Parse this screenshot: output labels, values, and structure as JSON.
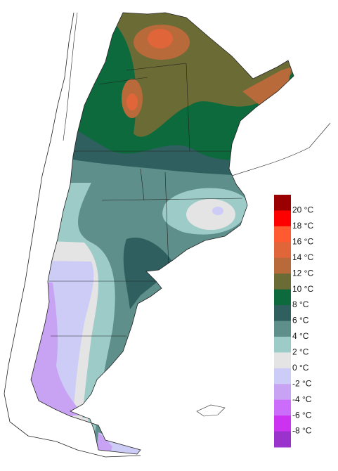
{
  "legend": {
    "labels": [
      "20 °C",
      "18 °C",
      "16 °C",
      "14 °C",
      "12 °C",
      "10 °C",
      "8 °C",
      "6 °C",
      "4 °C",
      "2 °C",
      "0 °C",
      "-2 °C",
      "-4 °C",
      "-6 °C",
      "-8 °C"
    ],
    "colors": [
      "#9b0000",
      "#ff0000",
      "#ff5a30",
      "#e0663a",
      "#b86a3a",
      "#6b6b35",
      "#0c6a3c",
      "#2f5f5f",
      "#5e8f8b",
      "#9ccbc8",
      "#e4e4e4",
      "#ccccf7",
      "#c9a3f3",
      "#cc6cfa",
      "#cc33f0",
      "#9933cc"
    ]
  }
}
